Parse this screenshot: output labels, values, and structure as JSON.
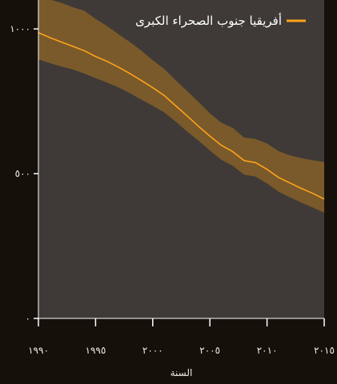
{
  "colors": {
    "page_background": "#16100b",
    "plot_background": "#3f3a37",
    "line": "#ffa31a",
    "band": "#7a5a2a",
    "axis": "#ffffff",
    "text": "#f2ece4"
  },
  "chart_data": {
    "type": "line",
    "title": "",
    "xlabel": "السنة",
    "ylabel": "",
    "xlim": [
      1990,
      2015
    ],
    "ylim": [
      0,
      1100
    ],
    "x_ticks": [
      1990,
      1995,
      2000,
      2005,
      2010,
      2015
    ],
    "x_tick_labels": [
      "١٩٩٠",
      "١٩٩٥",
      "٢٠٠٠",
      "٢٠٠٥",
      "٢٠١٠",
      "٢٠١٥"
    ],
    "y_ticks": [
      0,
      500,
      1000
    ],
    "y_tick_labels": [
      "٠",
      "٥٠٠",
      "١٠٠٠"
    ],
    "grid": false,
    "legend_position": "top-right",
    "series": [
      {
        "name": "أفريقيا جنوب الصحراء الكبرى",
        "x": [
          1990,
          1991,
          1992,
          1993,
          1994,
          1995,
          1996,
          1997,
          1998,
          1999,
          2000,
          2001,
          2002,
          2003,
          2004,
          2005,
          2006,
          2007,
          2008,
          2009,
          2010,
          2011,
          2012,
          2013,
          2014,
          2015
        ],
        "y": [
          987,
          970,
          955,
          940,
          925,
          905,
          888,
          868,
          846,
          822,
          797,
          770,
          735,
          700,
          664,
          630,
          598,
          576,
          545,
          538,
          515,
          487,
          468,
          449,
          432,
          412
        ],
        "lower": [
          895,
          882,
          870,
          860,
          846,
          830,
          815,
          798,
          778,
          756,
          735,
          712,
          680,
          646,
          614,
          580,
          548,
          527,
          497,
          490,
          466,
          438,
          418,
          400,
          383,
          365
        ],
        "upper": [
          1115,
          1102,
          1090,
          1075,
          1063,
          1035,
          1010,
          982,
          955,
          925,
          892,
          862,
          823,
          786,
          748,
          708,
          676,
          658,
          625,
          620,
          604,
          578,
          563,
          554,
          546,
          540
        ]
      }
    ]
  }
}
